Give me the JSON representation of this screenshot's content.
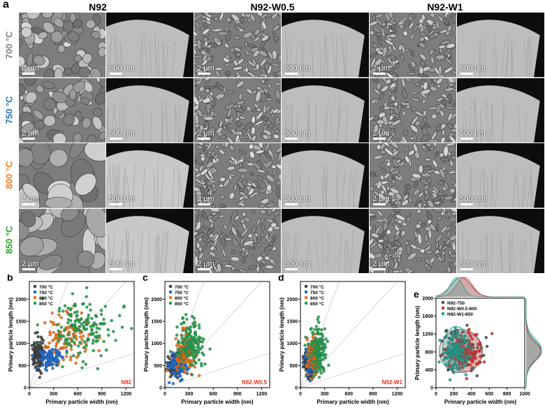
{
  "panel_a": {
    "letter": "a",
    "columns": [
      "N92",
      "N92-W0.5",
      "N92-W1"
    ],
    "rows": [
      {
        "label": "700 °C",
        "color": "#7f7f7f"
      },
      {
        "label": "750 °C",
        "color": "#1f77b4"
      },
      {
        "label": "800 °C",
        "color": "#f07f1f"
      },
      {
        "label": "850 °C",
        "color": "#2ca02c"
      }
    ],
    "scale_sem": "2 μm",
    "scale_xs": "500 nm"
  },
  "chart_data": [
    {
      "panel": "b",
      "type": "scatter",
      "tag": "N92",
      "xlabel": "Primary particle width (nm)",
      "ylabel": "Primary particle length (nm)",
      "xlim": [
        0,
        1300
      ],
      "ylim": [
        0,
        2400
      ],
      "xticks": [
        0,
        300,
        600,
        900,
        1200
      ],
      "yticks": [
        0,
        500,
        1000,
        1500,
        2000
      ],
      "legend": [
        "700 °C",
        "750 °C",
        "800 °C",
        "850 °C"
      ],
      "series": [
        {
          "name": "700 °C",
          "color": "#404040",
          "cx": 110,
          "cy": 780,
          "sx": 35,
          "sy": 200,
          "n": 150
        },
        {
          "name": "750 °C",
          "color": "#1f6fd0",
          "cx": 260,
          "cy": 650,
          "sx": 70,
          "sy": 120,
          "n": 110
        },
        {
          "name": "800 °C",
          "color": "#f07010",
          "cx": 470,
          "cy": 1150,
          "sx": 140,
          "sy": 260,
          "n": 110
        },
        {
          "name": "850 °C",
          "color": "#20a050",
          "cx": 640,
          "cy": 1350,
          "sx": 200,
          "sy": 330,
          "n": 150
        }
      ]
    },
    {
      "panel": "c",
      "type": "scatter",
      "tag": "N92-W0.5",
      "xlabel": "Primary particle width (nm)",
      "ylabel": "Primary particle length (nm)",
      "xlim": [
        0,
        1300
      ],
      "ylim": [
        0,
        2400
      ],
      "xticks": [
        0,
        300,
        600,
        900,
        1200
      ],
      "yticks": [
        0,
        500,
        1000,
        1500,
        2000
      ],
      "legend": [
        "700 °C",
        "750 °C",
        "800 °C",
        "850 °C"
      ],
      "series": [
        {
          "name": "700 °C",
          "color": "#404040",
          "cx": 120,
          "cy": 480,
          "sx": 40,
          "sy": 120,
          "n": 120
        },
        {
          "name": "750 °C",
          "color": "#1f6fd0",
          "cx": 170,
          "cy": 560,
          "sx": 55,
          "sy": 150,
          "n": 120
        },
        {
          "name": "800 °C",
          "color": "#f07010",
          "cx": 270,
          "cy": 800,
          "sx": 70,
          "sy": 200,
          "n": 130
        },
        {
          "name": "850 °C",
          "color": "#20a050",
          "cx": 330,
          "cy": 1000,
          "sx": 90,
          "sy": 260,
          "n": 140
        }
      ]
    },
    {
      "panel": "d",
      "type": "scatter",
      "tag": "N92-W1",
      "xlabel": "Primary particle width (nm)",
      "ylabel": "Primary particle length (nm)",
      "xlim": [
        0,
        1300
      ],
      "ylim": [
        0,
        2400
      ],
      "xticks": [
        0,
        300,
        600,
        900,
        1200
      ],
      "yticks": [
        0,
        500,
        1000,
        1500,
        2000
      ],
      "legend": [
        "700 °C",
        "750 °C",
        "800 °C",
        "850 °C"
      ],
      "series": [
        {
          "name": "700 °C",
          "color": "#404040",
          "cx": 100,
          "cy": 560,
          "sx": 30,
          "sy": 150,
          "n": 110
        },
        {
          "name": "750 °C",
          "color": "#1f6fd0",
          "cx": 130,
          "cy": 620,
          "sx": 35,
          "sy": 160,
          "n": 120
        },
        {
          "name": "800 °C",
          "color": "#f07010",
          "cx": 160,
          "cy": 700,
          "sx": 45,
          "sy": 200,
          "n": 120
        },
        {
          "name": "850 °C",
          "color": "#20a050",
          "cx": 220,
          "cy": 880,
          "sx": 55,
          "sy": 260,
          "n": 140
        }
      ]
    },
    {
      "panel": "e",
      "type": "scatter",
      "xlabel": "Primary particle width (nm)",
      "ylabel": "Primary particle length (nm)",
      "xlim": [
        0,
        1000
      ],
      "ylim": [
        0,
        2000
      ],
      "xticks": [
        0,
        200,
        400,
        600,
        800,
        1000
      ],
      "yticks": [
        0,
        400,
        800,
        1200,
        1600,
        2000
      ],
      "legend": [
        "N92-750",
        "N92-W0.5-800",
        "N92-W1-850"
      ],
      "series": [
        {
          "name": "N92-750",
          "color": "#505050",
          "cx": 280,
          "cy": 820,
          "sx": 110,
          "sy": 220,
          "n": 110
        },
        {
          "name": "N92-W0.5-800",
          "color": "#d83030",
          "cx": 320,
          "cy": 800,
          "sx": 90,
          "sy": 200,
          "n": 110
        },
        {
          "name": "N92-W1-850",
          "color": "#20a090",
          "cx": 230,
          "cy": 860,
          "sx": 70,
          "sy": 230,
          "n": 110
        }
      ]
    }
  ]
}
